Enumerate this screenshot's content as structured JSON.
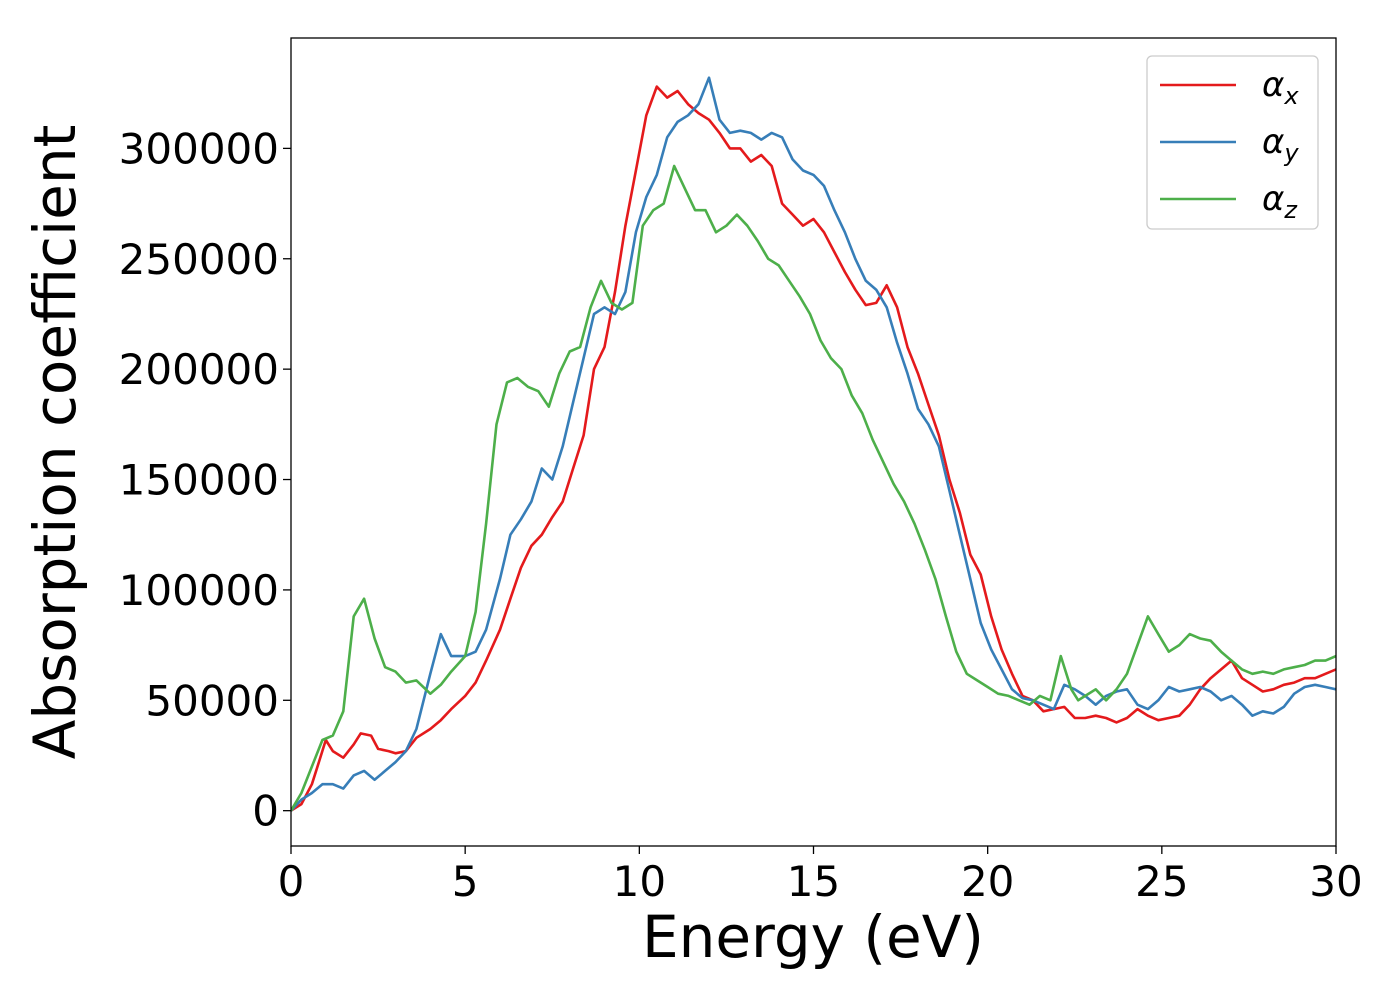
{
  "chart_data": {
    "type": "line",
    "title": "",
    "xlabel": "Energy (eV)",
    "ylabel": "Absorption coefficient",
    "xlim": [
      0,
      30
    ],
    "ylim": [
      -16000,
      350000
    ],
    "xticks": [
      0,
      5,
      10,
      15,
      20,
      25,
      30
    ],
    "yticks": [
      0,
      50000,
      100000,
      150000,
      200000,
      250000,
      300000
    ],
    "xtick_labels": [
      "0",
      "5",
      "10",
      "15",
      "20",
      "25",
      "30"
    ],
    "ytick_labels": [
      "0",
      "50000",
      "100000",
      "150000",
      "200000",
      "250000",
      "300000"
    ],
    "grid": false,
    "legend_position": "top-right",
    "series": [
      {
        "name": "αx",
        "symbol": "α",
        "subscript": "x",
        "color": "#e41a1c",
        "x": [
          0,
          0.3,
          0.6,
          0.8,
          1.0,
          1.2,
          1.5,
          1.8,
          2.0,
          2.3,
          2.5,
          2.8,
          3.0,
          3.3,
          3.6,
          4.0,
          4.3,
          4.6,
          5.0,
          5.3,
          5.6,
          6.0,
          6.3,
          6.6,
          6.9,
          7.2,
          7.5,
          7.8,
          8.1,
          8.4,
          8.7,
          9.0,
          9.3,
          9.6,
          9.9,
          10.2,
          10.5,
          10.8,
          11.1,
          11.4,
          11.7,
          12.0,
          12.3,
          12.6,
          12.9,
          13.2,
          13.5,
          13.8,
          14.1,
          14.4,
          14.7,
          15.0,
          15.3,
          15.6,
          15.9,
          16.2,
          16.5,
          16.8,
          17.1,
          17.4,
          17.7,
          18.0,
          18.3,
          18.6,
          18.9,
          19.2,
          19.5,
          19.8,
          20.1,
          20.4,
          20.7,
          21.0,
          21.3,
          21.6,
          21.9,
          22.2,
          22.5,
          22.8,
          23.1,
          23.4,
          23.7,
          24.0,
          24.3,
          24.6,
          24.9,
          25.2,
          25.5,
          25.8,
          26.1,
          26.4,
          26.7,
          27.0,
          27.3,
          27.6,
          27.9,
          28.2,
          28.5,
          28.8,
          29.1,
          29.4,
          29.7,
          30.0
        ],
        "y": [
          0,
          3000,
          12000,
          22000,
          32000,
          27000,
          24000,
          30000,
          35000,
          34000,
          28000,
          27000,
          26000,
          27000,
          33000,
          37000,
          41000,
          46000,
          52000,
          58000,
          68000,
          82000,
          96000,
          110000,
          120000,
          125000,
          133000,
          140000,
          155000,
          170000,
          200000,
          210000,
          235000,
          265000,
          290000,
          315000,
          328000,
          323000,
          326000,
          320000,
          316000,
          313000,
          307000,
          300000,
          300000,
          294000,
          297000,
          292000,
          275000,
          270000,
          265000,
          268000,
          262000,
          253000,
          244000,
          236000,
          229000,
          230000,
          238000,
          228000,
          210000,
          198000,
          184000,
          170000,
          150000,
          135000,
          116000,
          107000,
          88000,
          73000,
          62000,
          52000,
          50000,
          45000,
          46000,
          47000,
          42000,
          42000,
          43000,
          42000,
          40000,
          42000,
          46000,
          43000,
          41000,
          42000,
          43000,
          48000,
          55000,
          60000,
          64000,
          68000,
          60000,
          57000,
          54000,
          55000,
          57000,
          58000,
          60000,
          60000,
          62000,
          64000
        ]
      },
      {
        "name": "αy",
        "symbol": "α",
        "subscript": "y",
        "color": "#377eb8",
        "x": [
          0,
          0.3,
          0.6,
          0.9,
          1.2,
          1.5,
          1.8,
          2.1,
          2.4,
          2.7,
          3.0,
          3.3,
          3.6,
          4.0,
          4.3,
          4.6,
          5.0,
          5.3,
          5.6,
          6.0,
          6.3,
          6.6,
          6.9,
          7.2,
          7.5,
          7.8,
          8.1,
          8.4,
          8.7,
          9.0,
          9.3,
          9.6,
          9.9,
          10.2,
          10.5,
          10.8,
          11.1,
          11.4,
          11.7,
          12.0,
          12.3,
          12.6,
          12.9,
          13.2,
          13.5,
          13.8,
          14.1,
          14.4,
          14.7,
          15.0,
          15.3,
          15.6,
          15.9,
          16.2,
          16.5,
          16.8,
          17.1,
          17.4,
          17.7,
          18.0,
          18.3,
          18.6,
          18.9,
          19.2,
          19.5,
          19.8,
          20.1,
          20.4,
          20.7,
          21.0,
          21.3,
          21.6,
          21.9,
          22.2,
          22.5,
          22.8,
          23.1,
          23.4,
          23.7,
          24.0,
          24.3,
          24.6,
          24.9,
          25.2,
          25.5,
          25.8,
          26.1,
          26.4,
          26.7,
          27.0,
          27.3,
          27.6,
          27.9,
          28.2,
          28.5,
          28.8,
          29.1,
          29.4,
          29.7,
          30.0
        ],
        "y": [
          0,
          5000,
          8000,
          12000,
          12000,
          10000,
          16000,
          18000,
          14000,
          18000,
          22000,
          27000,
          37000,
          62000,
          80000,
          70000,
          70000,
          72000,
          82000,
          105000,
          125000,
          132000,
          140000,
          155000,
          150000,
          165000,
          185000,
          205000,
          225000,
          228000,
          225000,
          235000,
          262000,
          278000,
          288000,
          305000,
          312000,
          315000,
          320000,
          332000,
          313000,
          307000,
          308000,
          307000,
          304000,
          307000,
          305000,
          295000,
          290000,
          288000,
          283000,
          272000,
          262000,
          250000,
          240000,
          236000,
          228000,
          212000,
          198000,
          182000,
          175000,
          165000,
          145000,
          125000,
          105000,
          85000,
          73000,
          64000,
          55000,
          51000,
          50000,
          48000,
          46000,
          57000,
          55000,
          52000,
          48000,
          52000,
          54000,
          55000,
          48000,
          46000,
          50000,
          56000,
          54000,
          55000,
          56000,
          54000,
          50000,
          52000,
          48000,
          43000,
          45000,
          44000,
          47000,
          53000,
          56000,
          57000,
          56000,
          55000
        ]
      },
      {
        "name": "αz",
        "symbol": "α",
        "subscript": "z",
        "color": "#4daf4a",
        "x": [
          0,
          0.3,
          0.6,
          0.9,
          1.2,
          1.5,
          1.8,
          2.1,
          2.4,
          2.7,
          3.0,
          3.3,
          3.6,
          4.0,
          4.3,
          4.6,
          5.0,
          5.3,
          5.6,
          5.9,
          6.2,
          6.5,
          6.8,
          7.1,
          7.4,
          7.7,
          8.0,
          8.3,
          8.6,
          8.9,
          9.2,
          9.5,
          9.8,
          10.1,
          10.4,
          10.7,
          11.0,
          11.3,
          11.6,
          11.9,
          12.2,
          12.5,
          12.8,
          13.1,
          13.4,
          13.7,
          14.0,
          14.3,
          14.6,
          14.9,
          15.2,
          15.5,
          15.8,
          16.1,
          16.4,
          16.7,
          17.0,
          17.3,
          17.6,
          17.9,
          18.2,
          18.5,
          18.8,
          19.1,
          19.4,
          19.7,
          20.0,
          20.3,
          20.6,
          20.9,
          21.2,
          21.5,
          21.8,
          22.1,
          22.4,
          22.6,
          22.8,
          23.1,
          23.4,
          23.7,
          24.0,
          24.3,
          24.6,
          24.9,
          25.2,
          25.5,
          25.8,
          26.1,
          26.4,
          26.7,
          27.0,
          27.3,
          27.6,
          27.9,
          28.2,
          28.5,
          28.8,
          29.1,
          29.4,
          29.7,
          30.0
        ],
        "y": [
          0,
          8000,
          20000,
          32000,
          34000,
          45000,
          88000,
          96000,
          78000,
          65000,
          63000,
          58000,
          59000,
          53000,
          57000,
          63000,
          70000,
          90000,
          130000,
          175000,
          194000,
          196000,
          192000,
          190000,
          183000,
          198000,
          208000,
          210000,
          228000,
          240000,
          230000,
          227000,
          230000,
          265000,
          272000,
          275000,
          292000,
          282000,
          272000,
          272000,
          262000,
          265000,
          270000,
          265000,
          258000,
          250000,
          247000,
          240000,
          233000,
          225000,
          213000,
          205000,
          200000,
          188000,
          180000,
          168000,
          158000,
          148000,
          140000,
          130000,
          118000,
          105000,
          88000,
          72000,
          62000,
          59000,
          56000,
          53000,
          52000,
          50000,
          48000,
          52000,
          50000,
          70000,
          55000,
          50000,
          52000,
          55000,
          50000,
          55000,
          62000,
          75000,
          88000,
          80000,
          72000,
          75000,
          80000,
          78000,
          77000,
          72000,
          68000,
          64000,
          62000,
          63000,
          62000,
          64000,
          65000,
          66000,
          68000,
          68000,
          70000
        ]
      }
    ]
  }
}
